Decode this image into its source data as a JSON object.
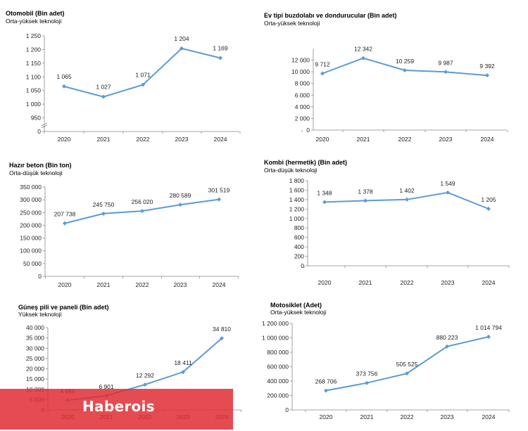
{
  "colors": {
    "line": "#5b9bd5",
    "axis": "#888888",
    "banner": "#e12d34"
  },
  "watermark": {
    "text": "Haberois"
  },
  "chart_data": [
    {
      "type": "line",
      "title": "Otomobil (Bin adet)",
      "subtitle": "Orta-yüksek teknoloji",
      "categories": [
        "2020",
        "2021",
        "2022",
        "2023",
        "2024"
      ],
      "series": [
        {
          "values": [
            1065,
            1027,
            1071,
            1204,
            1169
          ]
        }
      ],
      "data_labels": [
        "1 065",
        "1 027",
        "1 071",
        "1 204",
        "1 169"
      ],
      "y_ticks": [
        "0",
        "950",
        "1 000",
        "1 050",
        "1 100",
        "1 150",
        "1 200",
        "1 250"
      ],
      "y_tick_values": [
        0,
        950,
        1000,
        1050,
        1100,
        1150,
        1200,
        1250
      ],
      "ylim": [
        0,
        1250
      ],
      "y_axis_break": true,
      "grid": false
    },
    {
      "type": "line",
      "title": "Ev tipi buzdolabı ve dondurucular (Bin adet)",
      "subtitle": "Orta-yüksek teknoloji",
      "categories": [
        "2020",
        "2021",
        "2022",
        "2023",
        "2024"
      ],
      "series": [
        {
          "values": [
            9712,
            12342,
            10259,
            9987,
            9392
          ]
        }
      ],
      "data_labels": [
        "9 712",
        "12 342",
        "10 259",
        "9 987",
        "9 392"
      ],
      "y_ticks": [
        "0",
        "2 000",
        "4 000",
        "6 000",
        "8 000",
        "10 000",
        "12 000"
      ],
      "y_tick_values": [
        0,
        2000,
        4000,
        6000,
        8000,
        10000,
        12000
      ],
      "ylim": [
        0,
        14000
      ],
      "grid": false
    },
    {
      "type": "line",
      "title": "Hazır beton (Bin ton)",
      "subtitle": "Orta-düşük teknoloji",
      "categories": [
        "2020",
        "2021",
        "2022",
        "2023",
        "2024"
      ],
      "series": [
        {
          "values": [
            207738,
            245750,
            256020,
            280589,
            301519
          ]
        }
      ],
      "data_labels": [
        "207 738",
        "245 750",
        "256 020",
        "280 589",
        "301 519"
      ],
      "y_ticks": [
        "0",
        "50 000",
        "100 000",
        "150 000",
        "200 000",
        "250 000",
        "300 000",
        "350 000"
      ],
      "y_tick_values": [
        0,
        50000,
        100000,
        150000,
        200000,
        250000,
        300000,
        350000
      ],
      "ylim": [
        0,
        350000
      ],
      "grid": false
    },
    {
      "type": "line",
      "title": "Kombi (hermetik) (Bin adet)",
      "subtitle": "Orta-düşük teknoloji",
      "categories": [
        "2020",
        "2021",
        "2022",
        "2023",
        "2024"
      ],
      "series": [
        {
          "values": [
            1348,
            1378,
            1402,
            1549,
            1205
          ]
        }
      ],
      "data_labels": [
        "1 348",
        "1 378",
        "1 402",
        "1 549",
        "1 205"
      ],
      "y_ticks": [
        "0",
        "200",
        "400",
        "600",
        "800",
        "1 000",
        "1 200",
        "1 400",
        "1 600",
        "1 800"
      ],
      "y_tick_values": [
        0,
        200,
        400,
        600,
        800,
        1000,
        1200,
        1400,
        1600,
        1800
      ],
      "ylim": [
        0,
        1800
      ],
      "grid": false
    },
    {
      "type": "line",
      "title": "Güneş pili ve paneli (Bin adet)",
      "subtitle": "Yüksek teknoloji",
      "categories": [
        "2020",
        "2021",
        "2022",
        "2023",
        "2024"
      ],
      "series": [
        {
          "values": [
            4650,
            6901,
            12292,
            18411,
            34810
          ]
        }
      ],
      "data_labels": [
        "4 650",
        "6 901",
        "12 292",
        "18 411",
        "34 810"
      ],
      "y_ticks": [
        "0",
        "5 000",
        "10 000",
        "15 000",
        "20 000",
        "25 000",
        "30 000",
        "35 000",
        "40 000"
      ],
      "y_tick_values": [
        0,
        5000,
        10000,
        15000,
        20000,
        25000,
        30000,
        35000,
        40000
      ],
      "ylim": [
        0,
        40000
      ],
      "grid": false
    },
    {
      "type": "line",
      "title": "Motosiklet (Adet)",
      "subtitle": "Orta-yüksek teknoloji",
      "categories": [
        "2020",
        "2021",
        "2022",
        "2023",
        "2024"
      ],
      "series": [
        {
          "values": [
            268706,
            373756,
            505525,
            880223,
            1014794
          ]
        }
      ],
      "data_labels": [
        "268 706",
        "373 756",
        "505 525",
        "880 223",
        "1 014 794"
      ],
      "y_ticks": [
        "0",
        "200 000",
        "400 000",
        "600 000",
        "800 000",
        "1 000 000",
        "1 200 000"
      ],
      "y_tick_values": [
        0,
        200000,
        400000,
        600000,
        800000,
        1000000,
        1200000
      ],
      "ylim": [
        0,
        1200000
      ],
      "grid": false
    }
  ]
}
